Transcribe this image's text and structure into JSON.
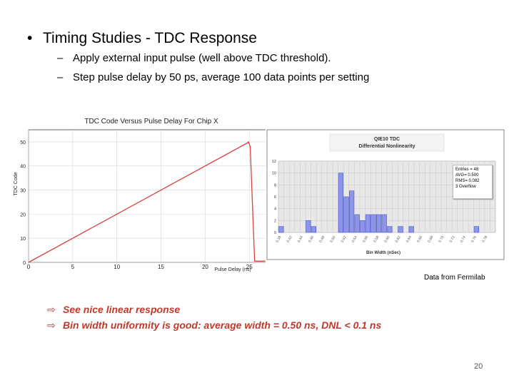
{
  "slide": {
    "title": "Timing Studies - TDC Response",
    "bullet_glyph": "•",
    "sub_dash": "–",
    "subpoints": [
      "Apply external input pulse (well above TDC threshold).",
      "Step pulse delay by 50 ps, average 100 data points per setting"
    ],
    "source_note": "Data from Fermilab",
    "arrow_glyph": "⇨",
    "notes": [
      "See nice linear response",
      "Bin width uniformity is good: average width = 0.50 ns, DNL < 0.1 ns"
    ],
    "page_number": "20"
  },
  "chart_data": [
    {
      "type": "line",
      "title": "TDC Code Versus Pulse Delay For Chip X",
      "xlabel": "Pulse Delay (ns)",
      "ylabel": "TDC Code",
      "xlim": [
        0,
        27
      ],
      "ylim": [
        0,
        55
      ],
      "xticks": [
        "0",
        "5",
        "10",
        "15",
        "20",
        "25"
      ],
      "yticks": [
        "0",
        "10",
        "20",
        "30",
        "40",
        "50"
      ],
      "series": [
        {
          "x": [
            0,
            24.8,
            24.9,
            25.1,
            25.6,
            26.8
          ],
          "y": [
            0,
            49.6,
            50,
            48,
            0.5,
            0.5
          ]
        }
      ],
      "color": "#d94040",
      "grid": true
    },
    {
      "type": "bar",
      "title": "QIE10 TDC",
      "subtitle": "Differential Nonlinearity",
      "xlabel": "Bin Width (nSec)",
      "ylim": [
        0,
        12
      ],
      "yticks": [
        "0",
        "2",
        "4",
        "6",
        "8",
        "10",
        "12"
      ],
      "categories": [
        "0.39",
        "0.42",
        "0.44",
        "0.46",
        "0.48",
        "0.50",
        "0.52",
        "0.54",
        "0.56",
        "0.58",
        "0.60",
        "0.62",
        "0.64",
        "0.66",
        "0.68",
        "0.70",
        "0.72",
        "0.74",
        "0.76",
        "0.78"
      ],
      "bins": [
        0.39,
        0.4,
        0.41,
        0.42,
        0.43,
        0.44,
        0.45,
        0.46,
        0.47,
        0.48,
        0.49,
        0.5,
        0.51,
        0.52,
        0.53,
        0.54,
        0.55,
        0.56,
        0.57,
        0.58,
        0.59,
        0.6,
        0.61,
        0.62,
        0.63,
        0.64,
        0.65,
        0.66,
        0.67,
        0.68,
        0.69,
        0.7,
        0.71,
        0.72,
        0.73,
        0.74,
        0.75,
        0.76,
        0.77,
        0.78
      ],
      "values": [
        1,
        0,
        0,
        0,
        0,
        2,
        1,
        0,
        0,
        0,
        0,
        10,
        6,
        7,
        3,
        2,
        3,
        3,
        3,
        3,
        1,
        0,
        1,
        0,
        1,
        0,
        0,
        0,
        0,
        0,
        0,
        0,
        0,
        0,
        0,
        0,
        1,
        0,
        0,
        0
      ],
      "color": "#8d95e8",
      "grid": true,
      "stats": [
        "Entries = 48",
        "AVG= 0.500",
        "RMS= 0.082",
        "3 Overflow"
      ]
    }
  ]
}
